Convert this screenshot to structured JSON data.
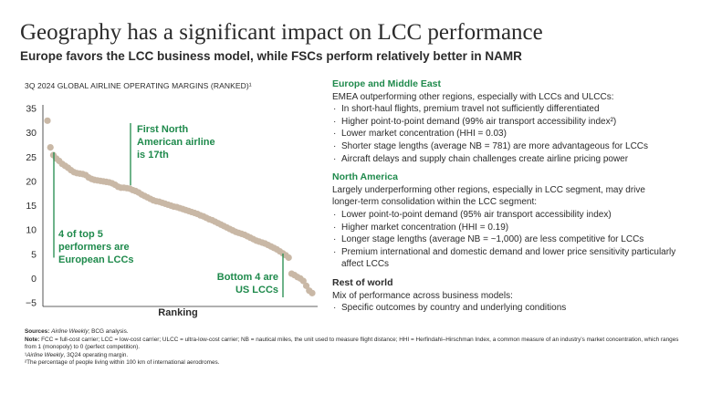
{
  "title": "Geography has a significant impact on LCC performance",
  "subtitle": "Europe favors the LCC business model, while FSCs perform relatively better in NAMR",
  "chart_title": "3Q 2024 GLOBAL AIRLINE OPERATING MARGINS (RANKED)¹",
  "chart_data": {
    "type": "scatter",
    "title": "3Q 2024 GLOBAL AIRLINE OPERATING MARGINS (RANKED)¹",
    "xlabel": "Ranking",
    "ylabel": "",
    "ylim": [
      -5,
      35
    ],
    "yticks": [
      "35",
      "30",
      "25",
      "20",
      "15",
      "10",
      "5",
      "0",
      "−5"
    ],
    "grid": false,
    "color": "#c9b8a6",
    "y": [
      32.5,
      27,
      25.4,
      24.7,
      24.2,
      23.6,
      23.2,
      22.8,
      22.3,
      21.9,
      21.7,
      21.6,
      21.5,
      21.3,
      20.8,
      20.5,
      20.3,
      20.2,
      20.1,
      20.0,
      19.9,
      19.8,
      19.6,
      19.3,
      18.9,
      18.7,
      18.7,
      18.6,
      18.5,
      18.2,
      18.0,
      17.7,
      17.3,
      17.0,
      16.7,
      16.4,
      16.1,
      15.9,
      15.8,
      15.6,
      15.4,
      15.2,
      15.0,
      14.8,
      14.7,
      14.5,
      14.3,
      14.1,
      13.9,
      13.7,
      13.5,
      13.3,
      13.0,
      12.8,
      12.5,
      12.2,
      12.0,
      11.7,
      11.4,
      11.1,
      10.8,
      10.5,
      10.2,
      9.9,
      9.6,
      9.4,
      9.2,
      9.0,
      8.7,
      8.4,
      8.1,
      7.8,
      7.6,
      7.4,
      7.2,
      6.9,
      6.6,
      6.3,
      6.0,
      5.6,
      5.2,
      4.8,
      4.3,
      1.0,
      0.7,
      0.3,
      0.0,
      -0.5,
      -1.5,
      -2.5,
      -3.0
    ],
    "annotations": [
      {
        "text": "4 of top 5 performers are European LCCs"
      },
      {
        "text": "First North American airline is 17th"
      },
      {
        "text": "Bottom 4 are US LCCs"
      }
    ]
  },
  "annotations": {
    "top5": [
      "4 of top 5",
      "performers are",
      "European LCCs"
    ],
    "first_na": [
      "First North",
      "American airline",
      "is 17th"
    ],
    "bottom4": [
      "Bottom 4 are",
      "US LCCs"
    ]
  },
  "right": {
    "europe": {
      "head": "Europe and Middle East",
      "intro": "EMEA outperforming other regions, especially with LCCs and ULCCs:",
      "bullets": [
        "In short-haul flights, premium travel not sufficiently differentiated",
        "Higher point-to-point demand (99% air transport accessibility index²)",
        "Lower market concentration (HHI = 0.03)",
        "Shorter stage lengths (average NB = 781) are more advantageous for LCCs",
        "Aircraft delays and supply chain challenges create airline pricing power"
      ]
    },
    "na": {
      "head": "North America",
      "intro1": "Largely underperforming other regions, especially in LCC segment, may drive",
      "intro2": "longer-term consolidation within the LCC segment:",
      "bullets": [
        "Lower point-to-point demand (95% air transport accessibility index)",
        "Higher market concentration (HHI = 0.19)",
        "Longer stage lengths (average NB = ~1,000) are less competitive for LCCs",
        "Premium international and domestic demand and lower price sensitivity particularly affect LCCs"
      ]
    },
    "rest": {
      "head": "Rest of world",
      "intro": "Mix of performance across business models:",
      "bullets": [
        "Specific outcomes by country and underlying conditions"
      ]
    }
  },
  "footer": {
    "sources_label": "Sources:",
    "sources_italic": "Airline Weekly",
    "sources_rest": "; BCG analysis.",
    "note_label": "Note:",
    "note_text": "FCC = full-cost carrier; LCC = low-cost carrier; ULCC = ultra-low-cost carrier; NB = nautical miles, the unit used to measure flight distance; HHI = Herfindahl–Hirschman Index, a common measure of an industry’s market concentration, which ranges from 1 (monopoly) to 0 (perfect competition).",
    "fn1_mark": "¹",
    "fn1_italic": "Airline Weekly",
    "fn1_rest": ", 3Q24 operating margin.",
    "fn2": "²The percentage of people living within 100 km of international aerodromes."
  }
}
